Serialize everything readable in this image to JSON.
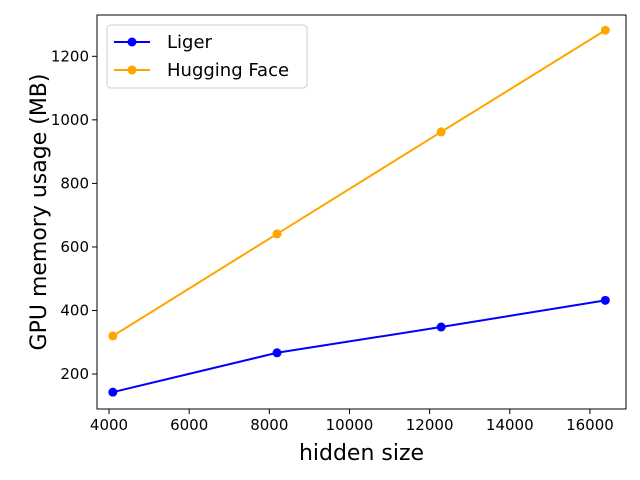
{
  "chart_data": {
    "type": "line",
    "title": "",
    "xlabel": "hidden size",
    "ylabel": "GPU memory usage (MB)",
    "xlim": [
      3700,
      16900
    ],
    "ylim": [
      90,
      1330
    ],
    "xticks": [
      4000,
      6000,
      8000,
      10000,
      12000,
      14000,
      16000
    ],
    "yticks": [
      200,
      400,
      600,
      800,
      1000,
      1200
    ],
    "grid": false,
    "legend_position": "top-left",
    "x": [
      4096,
      8192,
      12288,
      16384
    ],
    "series": [
      {
        "name": "Liger",
        "color": "#0000ff",
        "values": [
          143,
          267,
          348,
          432
        ]
      },
      {
        "name": "Hugging Face",
        "color": "#ffa500",
        "values": [
          320,
          641,
          962,
          1282
        ]
      }
    ]
  }
}
